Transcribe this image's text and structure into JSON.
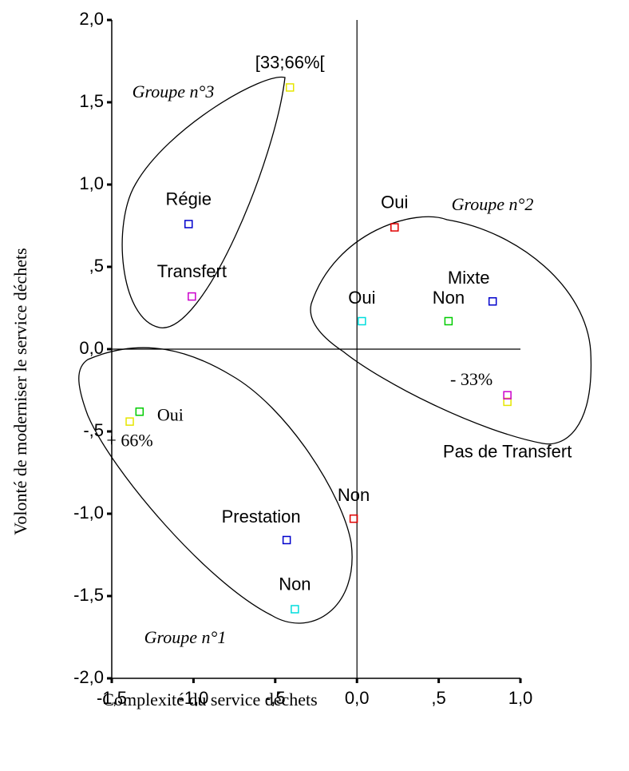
{
  "chart_data": {
    "type": "scatter",
    "x_label": "Complexité du service déchets",
    "y_label": "Volonté de moderniser le service déchets",
    "xlim": [
      -1.5,
      1.0
    ],
    "ylim": [
      -2.0,
      2.0
    ],
    "xticks": [
      {
        "value": -1.5,
        "label": "-1,5"
      },
      {
        "value": -1.0,
        "label": "-1,0"
      },
      {
        "value": -0.5,
        "label": "-,5"
      },
      {
        "value": 0,
        "label": "0,0"
      },
      {
        "value": 0.5,
        "label": ",5"
      },
      {
        "value": 1.0,
        "label": "1,0"
      }
    ],
    "yticks": [
      {
        "value": 2.0,
        "label": "2,0"
      },
      {
        "value": 1.5,
        "label": "1,5"
      },
      {
        "value": 1.0,
        "label": "1,0"
      },
      {
        "value": 0.5,
        "label": ",5"
      },
      {
        "value": 0,
        "label": "0,0"
      },
      {
        "value": -0.5,
        "label": "-,5"
      },
      {
        "value": -1.0,
        "label": "-1,0"
      },
      {
        "value": -1.5,
        "label": "-1,5"
      },
      {
        "value": -2.0,
        "label": "-2,0"
      }
    ],
    "points": [
      {
        "label": "[33;66%[",
        "x": -0.41,
        "y": 1.59,
        "color": "#e6e600"
      },
      {
        "label": "Régie",
        "x": -1.03,
        "y": 0.76,
        "color": "#0000cc"
      },
      {
        "label": "Transfert",
        "x": -1.01,
        "y": 0.32,
        "color": "#cc00cc"
      },
      {
        "label": "Oui",
        "x": 0.23,
        "y": 0.74,
        "color": "#e00000"
      },
      {
        "label": "Mixte",
        "x": 0.83,
        "y": 0.29,
        "color": "#0000cc"
      },
      {
        "label": "Oui",
        "x": 0.03,
        "y": 0.17,
        "color": "#00dddd"
      },
      {
        "label": "Non",
        "x": 0.56,
        "y": 0.17,
        "color": "#00cc00"
      },
      {
        "label": "- 33%",
        "x": 0.92,
        "y": -0.32,
        "color": "#e6e600"
      },
      {
        "label": "Pas de Transfert",
        "x": 0.92,
        "y": -0.28,
        "color": "#cc00cc"
      },
      {
        "label": "+ 66%",
        "x": -1.39,
        "y": -0.44,
        "color": "#e6e600"
      },
      {
        "label": "Oui",
        "x": -1.33,
        "y": -0.38,
        "color": "#00cc00"
      },
      {
        "label": "Non",
        "x": -0.02,
        "y": -1.03,
        "color": "#e00000"
      },
      {
        "label": "Prestation",
        "x": -0.43,
        "y": -1.16,
        "color": "#0000cc"
      },
      {
        "label": "Non",
        "x": -0.38,
        "y": -1.58,
        "color": "#00dddd"
      }
    ],
    "annotations": [
      "Groupe n°3",
      "Groupe n°2",
      "Groupe n°1"
    ]
  }
}
